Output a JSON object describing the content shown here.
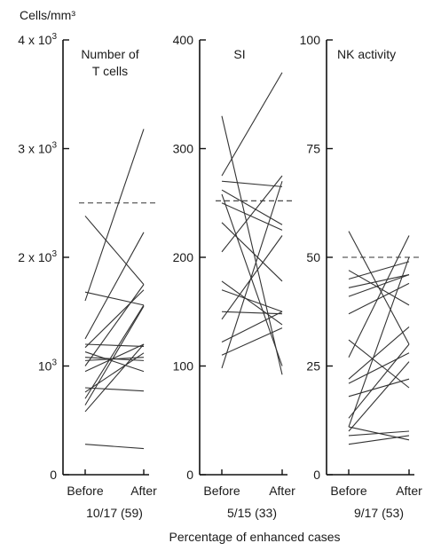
{
  "chart_data": {
    "type": "line",
    "unit_label": "Cells/mm³",
    "footer_label": "Percentage of enhanced cases",
    "panels": [
      {
        "id": "tcells",
        "title_lines": [
          "Number of",
          "T cells"
        ],
        "categories": [
          "Before",
          "After"
        ],
        "ylim": [
          0,
          4000
        ],
        "ticks": [
          {
            "value": 0,
            "label": "0",
            "exp": ""
          },
          {
            "value": 1000,
            "label": "10",
            "exp": "3"
          },
          {
            "value": 2000,
            "label": "2 x 10",
            "exp": "3"
          },
          {
            "value": 3000,
            "label": "3 x 10",
            "exp": "3"
          },
          {
            "value": 4000,
            "label": "4 x 10",
            "exp": "3"
          }
        ],
        "reference": 2500,
        "ratio_label": "10/17 (59)",
        "pairs": [
          [
            2380,
            1750
          ],
          [
            1680,
            1560
          ],
          [
            1600,
            3180
          ],
          [
            1250,
            2230
          ],
          [
            1200,
            1180
          ],
          [
            1170,
            1700
          ],
          [
            1130,
            950
          ],
          [
            1080,
            1050
          ],
          [
            1050,
            1080
          ],
          [
            1000,
            1750
          ],
          [
            950,
            1200
          ],
          [
            800,
            770
          ],
          [
            760,
            1120
          ],
          [
            700,
            1560
          ],
          [
            640,
            1550
          ],
          [
            580,
            1200
          ],
          [
            280,
            240
          ]
        ]
      },
      {
        "id": "si",
        "title_lines": [
          "SI"
        ],
        "categories": [
          "Before",
          "After"
        ],
        "ylim": [
          0,
          400
        ],
        "ticks": [
          {
            "value": 0,
            "label": "0",
            "exp": ""
          },
          {
            "value": 100,
            "label": "100",
            "exp": ""
          },
          {
            "value": 200,
            "label": "200",
            "exp": ""
          },
          {
            "value": 300,
            "label": "300",
            "exp": ""
          },
          {
            "value": 400,
            "label": "400",
            "exp": ""
          }
        ],
        "reference": 252,
        "ratio_label": "5/15 (33)",
        "pairs": [
          [
            330,
            92
          ],
          [
            275,
            370
          ],
          [
            270,
            265
          ],
          [
            262,
            230
          ],
          [
            258,
            100
          ],
          [
            250,
            225
          ],
          [
            232,
            178
          ],
          [
            205,
            275
          ],
          [
            178,
            138
          ],
          [
            170,
            150
          ],
          [
            150,
            148
          ],
          [
            143,
            220
          ],
          [
            122,
            150
          ],
          [
            110,
            135
          ],
          [
            98,
            270
          ]
        ]
      },
      {
        "id": "nk",
        "title_lines": [
          "NK activity"
        ],
        "categories": [
          "Before",
          "After"
        ],
        "ylim": [
          0,
          100
        ],
        "ticks": [
          {
            "value": 0,
            "label": "0",
            "exp": ""
          },
          {
            "value": 25,
            "label": "25",
            "exp": ""
          },
          {
            "value": 50,
            "label": "50",
            "exp": ""
          },
          {
            "value": 75,
            "label": "75",
            "exp": ""
          },
          {
            "value": 100,
            "label": "100",
            "exp": ""
          }
        ],
        "reference": 50,
        "ratio_label": "9/17 (53)",
        "pairs": [
          [
            56,
            30
          ],
          [
            47,
            39
          ],
          [
            45,
            49
          ],
          [
            43,
            46
          ],
          [
            41,
            46
          ],
          [
            37,
            44
          ],
          [
            31,
            20
          ],
          [
            27,
            55
          ],
          [
            22,
            34
          ],
          [
            21,
            28
          ],
          [
            18,
            22
          ],
          [
            13,
            30
          ],
          [
            11,
            8
          ],
          [
            11,
            50
          ],
          [
            10,
            26
          ],
          [
            9,
            10
          ],
          [
            7,
            9
          ]
        ]
      }
    ]
  }
}
